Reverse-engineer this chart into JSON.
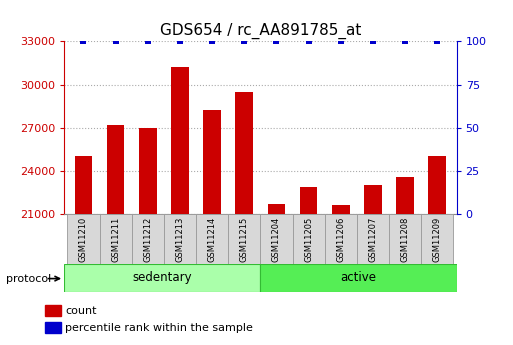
{
  "title": "GDS654 / rc_AA891785_at",
  "samples": [
    "GSM11210",
    "GSM11211",
    "GSM11212",
    "GSM11213",
    "GSM11214",
    "GSM11215",
    "GSM11204",
    "GSM11205",
    "GSM11206",
    "GSM11207",
    "GSM11208",
    "GSM11209"
  ],
  "counts": [
    25000,
    27200,
    27000,
    31200,
    28200,
    29500,
    21700,
    22900,
    21600,
    23000,
    23600,
    25000
  ],
  "percentile_ranks": [
    100,
    100,
    100,
    100,
    100,
    100,
    100,
    100,
    100,
    100,
    100,
    100
  ],
  "groups": [
    {
      "label": "sedentary",
      "start": 0,
      "end": 6
    },
    {
      "label": "active",
      "start": 6,
      "end": 12
    }
  ],
  "group_colors": [
    "#aaffaa",
    "#55ee55"
  ],
  "bar_color": "#cc0000",
  "percentile_color": "#0000cc",
  "left_yticks": [
    21000,
    24000,
    27000,
    30000,
    33000
  ],
  "right_yticks": [
    0,
    25,
    50,
    75,
    100
  ],
  "ylim": [
    21000,
    33000
  ],
  "right_ylim": [
    0,
    100
  ],
  "title_fontsize": 11,
  "tick_fontsize": 8,
  "label_fontsize": 8,
  "protocol_label": "protocol",
  "legend_count_label": "count",
  "legend_percentile_label": "percentile rank within the sample"
}
